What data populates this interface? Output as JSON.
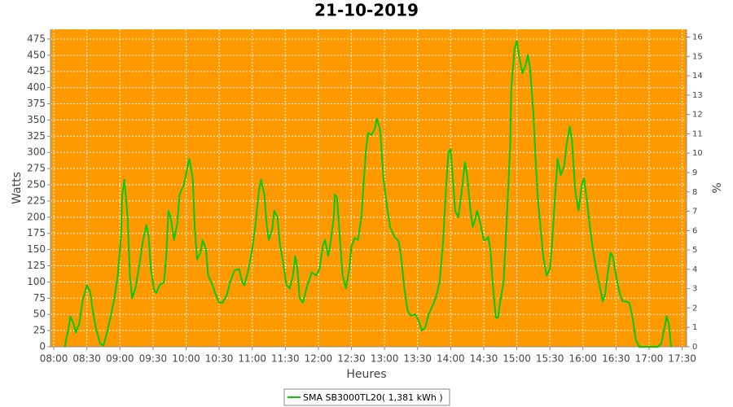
{
  "chart_data": {
    "type": "line",
    "title": "21-10-2019",
    "x_label": "Heures",
    "y_label": "Watts",
    "y2_label": "%",
    "x": [
      "08:10",
      "08:13",
      "08:15",
      "08:18",
      "08:20",
      "08:23",
      "08:26",
      "08:30",
      "08:33",
      "08:35",
      "08:38",
      "08:42",
      "08:45",
      "08:48",
      "08:52",
      "08:55",
      "08:58",
      "09:01",
      "09:02",
      "09:04",
      "09:07",
      "09:09",
      "09:11",
      "09:14",
      "09:18",
      "09:21",
      "09:24",
      "09:26",
      "09:28",
      "09:31",
      "09:33",
      "09:36",
      "09:40",
      "09:42",
      "09:44",
      "09:46",
      "09:49",
      "09:52",
      "09:54",
      "09:58",
      "10:01",
      "10:03",
      "10:06",
      "10:08",
      "10:10",
      "10:13",
      "10:15",
      "10:18",
      "10:20",
      "10:24",
      "10:27",
      "10:30",
      "10:33",
      "10:37",
      "10:40",
      "10:44",
      "10:48",
      "10:51",
      "10:53",
      "10:56",
      "11:00",
      "11:03",
      "11:06",
      "11:08",
      "11:11",
      "11:13",
      "11:15",
      "11:18",
      "11:20",
      "11:23",
      "11:25",
      "11:28",
      "11:31",
      "11:34",
      "11:37",
      "11:39",
      "11:41",
      "11:43",
      "11:46",
      "11:50",
      "11:54",
      "11:58",
      "12:01",
      "12:04",
      "12:06",
      "12:09",
      "12:11",
      "12:14",
      "12:15",
      "12:17",
      "12:19",
      "12:22",
      "12:25",
      "12:28",
      "12:30",
      "12:33",
      "12:36",
      "12:39",
      "12:41",
      "12:43",
      "12:45",
      "12:48",
      "12:51",
      "12:53",
      "12:56",
      "12:59",
      "13:02",
      "13:05",
      "13:09",
      "13:13",
      "13:15",
      "13:18",
      "13:21",
      "13:24",
      "13:28",
      "13:31",
      "13:34",
      "13:37",
      "13:40",
      "13:44",
      "13:47",
      "13:50",
      "13:53",
      "13:56",
      "13:58",
      "14:00",
      "14:02",
      "14:04",
      "14:07",
      "14:10",
      "14:13",
      "14:15",
      "14:18",
      "14:20",
      "14:22",
      "14:24",
      "14:27",
      "14:30",
      "14:32",
      "14:34",
      "14:36",
      "14:38",
      "14:41",
      "14:43",
      "14:45",
      "14:48",
      "14:51",
      "14:54",
      "14:55",
      "14:58",
      "15:00",
      "15:02",
      "15:05",
      "15:08",
      "15:10",
      "15:12",
      "15:15",
      "15:17",
      "15:19",
      "15:22",
      "15:24",
      "15:27",
      "15:30",
      "15:32",
      "15:35",
      "15:37",
      "15:40",
      "15:43",
      "15:45",
      "15:48",
      "15:50",
      "15:53",
      "15:56",
      "15:59",
      "16:01",
      "16:03",
      "16:06",
      "16:09",
      "16:12",
      "16:15",
      "16:18",
      "16:20",
      "16:23",
      "16:25",
      "16:27",
      "16:30",
      "16:33",
      "16:36",
      "16:39",
      "16:42",
      "16:45",
      "16:48",
      "16:51",
      "16:55",
      "17:02",
      "17:08",
      "17:11",
      "17:14",
      "17:16",
      "17:18",
      "17:20"
    ],
    "series": [
      {
        "name": "SMA SB3000TL20( 1,381 kWh )",
        "color": "#00cc00",
        "values": [
          0,
          25,
          47,
          35,
          22,
          35,
          70,
          95,
          85,
          60,
          30,
          5,
          2,
          20,
          50,
          75,
          110,
          170,
          235,
          258,
          200,
          110,
          75,
          90,
          130,
          165,
          188,
          170,
          120,
          87,
          83,
          95,
          100,
          140,
          210,
          200,
          165,
          190,
          235,
          250,
          275,
          290,
          260,
          180,
          135,
          145,
          165,
          150,
          110,
          95,
          80,
          68,
          68,
          80,
          100,
          118,
          120,
          100,
          95,
          115,
          150,
          190,
          240,
          258,
          235,
          190,
          165,
          180,
          210,
          200,
          160,
          130,
          95,
          90,
          110,
          140,
          120,
          75,
          68,
          95,
          115,
          110,
          120,
          155,
          165,
          140,
          160,
          200,
          235,
          230,
          180,
          110,
          90,
          120,
          155,
          168,
          165,
          200,
          250,
          300,
          330,
          327,
          335,
          352,
          335,
          260,
          220,
          185,
          170,
          162,
          140,
          90,
          55,
          48,
          50,
          40,
          25,
          30,
          50,
          65,
          78,
          100,
          160,
          250,
          300,
          305,
          260,
          210,
          200,
          240,
          285,
          265,
          210,
          185,
          195,
          210,
          190,
          165,
          165,
          170,
          150,
          100,
          45,
          45,
          70,
          100,
          200,
          310,
          400,
          460,
          472,
          450,
          422,
          435,
          450,
          430,
          360,
          290,
          230,
          175,
          140,
          110,
          120,
          160,
          240,
          290,
          265,
          280,
          310,
          340,
          320,
          240,
          210,
          250,
          260,
          235,
          190,
          150,
          120,
          95,
          70,
          80,
          120,
          145,
          140,
          110,
          85,
          70,
          70,
          68,
          45,
          10,
          0,
          0,
          0,
          0,
          5,
          30,
          47,
          35,
          0
        ]
      }
    ],
    "xlim": [
      "07:57",
      "17:34"
    ],
    "xticks": [
      "08:00",
      "08:30",
      "09:00",
      "09:30",
      "10:00",
      "10:30",
      "11:00",
      "11:30",
      "12:00",
      "12:30",
      "13:00",
      "13:30",
      "14:00",
      "14:30",
      "15:00",
      "15:30",
      "16:00",
      "16:30",
      "17:00",
      "17:30"
    ],
    "ylim": [
      0,
      490
    ],
    "yticks": [
      0,
      25,
      50,
      75,
      100,
      125,
      150,
      175,
      200,
      225,
      250,
      275,
      300,
      325,
      350,
      375,
      400,
      425,
      450,
      475
    ],
    "y2lim": [
      0,
      16.4
    ],
    "y2ticks": [
      0,
      1,
      2,
      3,
      4,
      5,
      6,
      7,
      8,
      9,
      10,
      11,
      12,
      13,
      14,
      15,
      16
    ],
    "grid": true,
    "background": "#ff9900",
    "legend": "bottom"
  }
}
